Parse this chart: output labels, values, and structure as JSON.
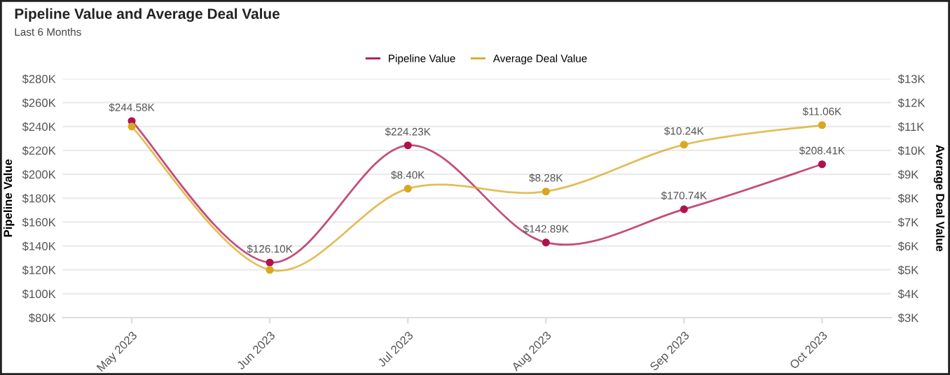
{
  "chart_data": {
    "type": "line",
    "title": "Pipeline Value and Average Deal Value",
    "subtitle": "Last 6 Months",
    "ylabel": "Pipeline Value",
    "y2label": "Average Deal Value",
    "categories": [
      "May 2023",
      "Jun 2023",
      "Jul 2023",
      "Aug 2023",
      "Sep 2023",
      "Oct 2023"
    ],
    "series": [
      {
        "name": "Pipeline Value",
        "color": "#b0124f",
        "values": [
          244.58,
          126.1,
          224.23,
          142.89,
          170.74,
          208.41
        ],
        "value_labels": [
          "$244.58K",
          "$126.10K",
          "$224.23K",
          "$142.89K",
          "$170.74K",
          "$208.41K"
        ]
      },
      {
        "name": "Average Deal Value",
        "color": "#d9a821",
        "axis": "y2",
        "values": [
          11.0,
          5.0,
          8.4,
          8.28,
          10.24,
          11.06
        ],
        "value_labels": [
          null,
          null,
          "$8.40K",
          "$8.28K",
          "$10.24K",
          "$11.06K"
        ]
      }
    ],
    "ylim": [
      80,
      280
    ],
    "yticks": [
      {
        "value": 80,
        "label": "$80K"
      },
      {
        "value": 100,
        "label": "$100K"
      },
      {
        "value": 120,
        "label": "$120K"
      },
      {
        "value": 140,
        "label": "$140K"
      },
      {
        "value": 160,
        "label": "$160K"
      },
      {
        "value": 180,
        "label": "$180K"
      },
      {
        "value": 200,
        "label": "$200K"
      },
      {
        "value": 220,
        "label": "$220K"
      },
      {
        "value": 240,
        "label": "$240K"
      },
      {
        "value": 260,
        "label": "$260K"
      },
      {
        "value": 280,
        "label": "$280K"
      }
    ],
    "y2lim": [
      3,
      13
    ],
    "y2ticks": [
      {
        "value": 3,
        "label": "$3K"
      },
      {
        "value": 4,
        "label": "$4K"
      },
      {
        "value": 5,
        "label": "$5K"
      },
      {
        "value": 6,
        "label": "$6K"
      },
      {
        "value": 7,
        "label": "$7K"
      },
      {
        "value": 8,
        "label": "$8K"
      },
      {
        "value": 9,
        "label": "$9K"
      },
      {
        "value": 10,
        "label": "$10K"
      },
      {
        "value": 11,
        "label": "$11K"
      },
      {
        "value": 12,
        "label": "$12K"
      },
      {
        "value": 13,
        "label": "$13K"
      }
    ],
    "grid": "y",
    "legend": "top",
    "marker": "circle",
    "line_style": "solid"
  }
}
